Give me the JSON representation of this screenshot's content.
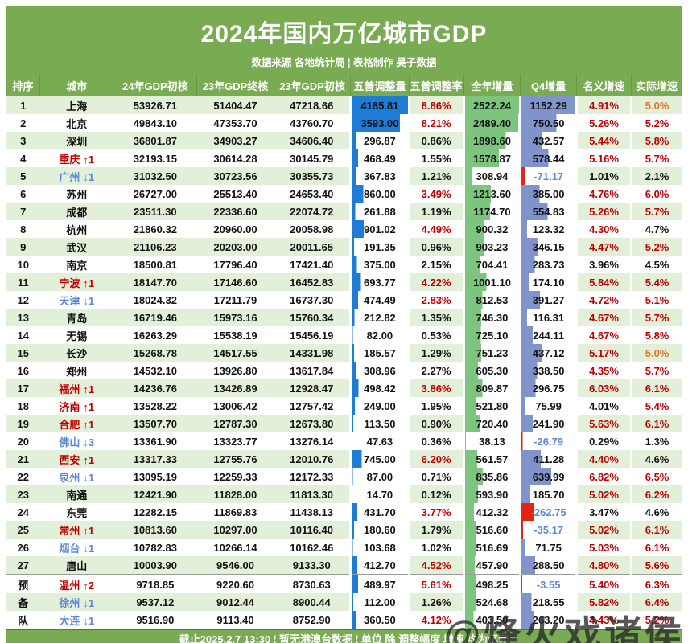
{
  "title": "2024年国内万亿城市GDP",
  "subtitle": "数据来源 各地统计局 ¦ 表格制作 昊子数据",
  "footer": "截止2025.2.7 13:30 ¦ 暂无港澳台数据 ¦ 单位 除 调整幅度 增速 均为亿元",
  "watermark": "@烽火戏诸侯",
  "colors": {
    "header_green": "#79AB52",
    "row_alt": "#E2EFD9",
    "red": "#C00000",
    "orange": "#E2762C",
    "blue": "#5B87D9",
    "adj_bar": "#1F7CD5",
    "annual_bar": "#7DC47E",
    "q4_bar": "#8193CB",
    "neg_bar": "#E02514"
  },
  "columns": [
    "排序",
    "城市",
    "24年GDP初核",
    "23年GDP终核",
    "23年GDP初核",
    "五普调整量",
    "五普调整率",
    "全年增量",
    "Q4增量",
    "名义增速",
    "实际增速"
  ],
  "bar_max": {
    "adj": 4185.81,
    "annual": 2522.24,
    "q4": 1152.29
  },
  "chart_data": {
    "type": "table",
    "title": "2024年国内万亿城市GDP",
    "note": "bars: 五普调整量(blue), 全年增量(green), Q4增量(slate blue / red if negative)"
  },
  "rows": [
    {
      "rank": "1",
      "city": "上海",
      "change": "",
      "dir": "",
      "gdp24": "53926.71",
      "gdp23f": "51404.47",
      "gdp23i": "47218.66",
      "adj": "4185.81",
      "adj_rate": "8.86%",
      "annual": "2522.24",
      "q4": "1152.29",
      "nominal": "4.91%",
      "real": "5.0%"
    },
    {
      "rank": "2",
      "city": "北京",
      "change": "",
      "dir": "",
      "gdp24": "49843.10",
      "gdp23f": "47353.70",
      "gdp23i": "43760.70",
      "adj": "3593.00",
      "adj_rate": "8.21%",
      "annual": "2489.40",
      "q4": "750.50",
      "nominal": "5.26%",
      "real": "5.2%"
    },
    {
      "rank": "3",
      "city": "深圳",
      "change": "",
      "dir": "",
      "gdp24": "36801.87",
      "gdp23f": "34903.27",
      "gdp23i": "34606.40",
      "adj": "296.87",
      "adj_rate": "0.86%",
      "annual": "1898.60",
      "q4": "432.57",
      "nominal": "5.44%",
      "real": "5.8%"
    },
    {
      "rank": "4",
      "city": "重庆",
      "change": "↑1",
      "dir": "up",
      "gdp24": "32193.15",
      "gdp23f": "30614.28",
      "gdp23i": "30145.79",
      "adj": "468.49",
      "adj_rate": "1.55%",
      "annual": "1578.87",
      "q4": "578.44",
      "nominal": "5.16%",
      "real": "5.7%"
    },
    {
      "rank": "5",
      "city": "广州",
      "change": "↓1",
      "dir": "down",
      "gdp24": "31032.50",
      "gdp23f": "30723.56",
      "gdp23i": "30355.73",
      "adj": "367.83",
      "adj_rate": "1.21%",
      "annual": "308.94",
      "q4": "-71.17",
      "nominal": "1.01%",
      "real": "2.1%"
    },
    {
      "rank": "6",
      "city": "苏州",
      "change": "",
      "dir": "",
      "gdp24": "26727.00",
      "gdp23f": "25513.40",
      "gdp23i": "24653.40",
      "adj": "860.00",
      "adj_rate": "3.49%",
      "annual": "1213.60",
      "q4": "385.00",
      "nominal": "4.76%",
      "real": "6.0%"
    },
    {
      "rank": "7",
      "city": "成都",
      "change": "",
      "dir": "",
      "gdp24": "23511.30",
      "gdp23f": "22336.60",
      "gdp23i": "22074.72",
      "adj": "261.88",
      "adj_rate": "1.19%",
      "annual": "1174.70",
      "q4": "554.83",
      "nominal": "5.26%",
      "real": "5.7%"
    },
    {
      "rank": "8",
      "city": "杭州",
      "change": "",
      "dir": "",
      "gdp24": "21860.32",
      "gdp23f": "20960.00",
      "gdp23i": "20058.98",
      "adj": "901.02",
      "adj_rate": "4.49%",
      "annual": "900.32",
      "q4": "123.32",
      "nominal": "4.30%",
      "real": "4.7%"
    },
    {
      "rank": "9",
      "city": "武汉",
      "change": "",
      "dir": "",
      "gdp24": "21106.23",
      "gdp23f": "20203.00",
      "gdp23i": "20011.65",
      "adj": "191.35",
      "adj_rate": "0.96%",
      "annual": "903.23",
      "q4": "346.15",
      "nominal": "4.47%",
      "real": "5.2%"
    },
    {
      "rank": "10",
      "city": "南京",
      "change": "",
      "dir": "",
      "gdp24": "18500.81",
      "gdp23f": "17796.40",
      "gdp23i": "17421.40",
      "adj": "375.00",
      "adj_rate": "2.15%",
      "annual": "704.41",
      "q4": "283.73",
      "nominal": "3.96%",
      "real": "4.5%"
    },
    {
      "rank": "11",
      "city": "宁波",
      "change": "↑1",
      "dir": "up",
      "gdp24": "18147.70",
      "gdp23f": "17146.60",
      "gdp23i": "16452.83",
      "adj": "693.77",
      "adj_rate": "4.22%",
      "annual": "1001.10",
      "q4": "174.10",
      "nominal": "5.84%",
      "real": "5.4%"
    },
    {
      "rank": "12",
      "city": "天津",
      "change": "↓1",
      "dir": "down",
      "gdp24": "18024.32",
      "gdp23f": "17211.79",
      "gdp23i": "16737.30",
      "adj": "474.49",
      "adj_rate": "2.83%",
      "annual": "812.53",
      "q4": "391.27",
      "nominal": "4.72%",
      "real": "5.1%"
    },
    {
      "rank": "13",
      "city": "青岛",
      "change": "",
      "dir": "",
      "gdp24": "16719.46",
      "gdp23f": "15973.16",
      "gdp23i": "15760.34",
      "adj": "212.82",
      "adj_rate": "1.35%",
      "annual": "746.30",
      "q4": "116.31",
      "nominal": "4.67%",
      "real": "5.7%"
    },
    {
      "rank": "14",
      "city": "无锡",
      "change": "",
      "dir": "",
      "gdp24": "16263.29",
      "gdp23f": "15538.19",
      "gdp23i": "15456.19",
      "adj": "82.00",
      "adj_rate": "0.53%",
      "annual": "725.10",
      "q4": "244.11",
      "nominal": "4.67%",
      "real": "5.8%"
    },
    {
      "rank": "15",
      "city": "长沙",
      "change": "",
      "dir": "",
      "gdp24": "15268.78",
      "gdp23f": "14517.55",
      "gdp23i": "14331.98",
      "adj": "185.57",
      "adj_rate": "1.29%",
      "annual": "751.23",
      "q4": "437.12",
      "nominal": "5.17%",
      "real": "5.0%"
    },
    {
      "rank": "16",
      "city": "郑州",
      "change": "",
      "dir": "",
      "gdp24": "14532.10",
      "gdp23f": "13926.80",
      "gdp23i": "13617.84",
      "adj": "308.96",
      "adj_rate": "2.27%",
      "annual": "605.30",
      "q4": "338.50",
      "nominal": "4.35%",
      "real": "5.7%"
    },
    {
      "rank": "17",
      "city": "福州",
      "change": "↑1",
      "dir": "up",
      "gdp24": "14236.76",
      "gdp23f": "13426.89",
      "gdp23i": "12928.47",
      "adj": "498.42",
      "adj_rate": "3.86%",
      "annual": "809.87",
      "q4": "296.75",
      "nominal": "6.03%",
      "real": "6.1%"
    },
    {
      "rank": "18",
      "city": "济南",
      "change": "↑1",
      "dir": "up",
      "gdp24": "13528.22",
      "gdp23f": "13006.42",
      "gdp23i": "12757.42",
      "adj": "249.00",
      "adj_rate": "1.95%",
      "annual": "521.80",
      "q4": "75.99",
      "nominal": "4.01%",
      "real": "5.4%"
    },
    {
      "rank": "19",
      "city": "合肥",
      "change": "↑1",
      "dir": "up",
      "gdp24": "13507.70",
      "gdp23f": "12787.30",
      "gdp23i": "12673.80",
      "adj": "113.50",
      "adj_rate": "0.90%",
      "annual": "720.40",
      "q4": "241.90",
      "nominal": "5.63%",
      "real": "6.1%"
    },
    {
      "rank": "20",
      "city": "佛山",
      "change": "↓3",
      "dir": "down",
      "gdp24": "13361.90",
      "gdp23f": "13323.77",
      "gdp23i": "13276.14",
      "adj": "47.63",
      "adj_rate": "0.36%",
      "annual": "38.13",
      "q4": "-26.79",
      "nominal": "0.29%",
      "real": "1.3%"
    },
    {
      "rank": "21",
      "city": "西安",
      "change": "↑1",
      "dir": "up",
      "gdp24": "13317.33",
      "gdp23f": "12755.76",
      "gdp23i": "12010.76",
      "adj": "745.00",
      "adj_rate": "6.20%",
      "annual": "561.57",
      "q4": "411.28",
      "nominal": "4.40%",
      "real": "4.6%"
    },
    {
      "rank": "22",
      "city": "泉州",
      "change": "↓1",
      "dir": "down",
      "gdp24": "13095.19",
      "gdp23f": "12259.33",
      "gdp23i": "12172.33",
      "adj": "87.00",
      "adj_rate": "0.71%",
      "annual": "835.86",
      "q4": "639.99",
      "nominal": "6.82%",
      "real": "6.5%"
    },
    {
      "rank": "23",
      "city": "南通",
      "change": "",
      "dir": "",
      "gdp24": "12421.90",
      "gdp23f": "11828.00",
      "gdp23i": "11813.30",
      "adj": "14.70",
      "adj_rate": "0.12%",
      "annual": "593.90",
      "q4": "185.70",
      "nominal": "5.02%",
      "real": "6.2%"
    },
    {
      "rank": "24",
      "city": "东莞",
      "change": "",
      "dir": "",
      "gdp24": "12282.15",
      "gdp23f": "11869.83",
      "gdp23i": "11438.13",
      "adj": "431.70",
      "adj_rate": "3.77%",
      "annual": "412.32",
      "q4": "-262.75",
      "nominal": "3.47%",
      "real": "4.6%"
    },
    {
      "rank": "25",
      "city": "常州",
      "change": "↑1",
      "dir": "up",
      "gdp24": "10813.60",
      "gdp23f": "10297.00",
      "gdp23i": "10116.40",
      "adj": "180.60",
      "adj_rate": "1.79%",
      "annual": "516.60",
      "q4": "-35.17",
      "nominal": "5.02%",
      "real": "6.1%"
    },
    {
      "rank": "26",
      "city": "烟台",
      "change": "↓1",
      "dir": "down",
      "gdp24": "10782.83",
      "gdp23f": "10266.14",
      "gdp23i": "10162.46",
      "adj": "103.68",
      "adj_rate": "1.02%",
      "annual": "516.69",
      "q4": "71.75",
      "nominal": "5.03%",
      "real": "6.1%"
    },
    {
      "rank": "27",
      "city": "唐山",
      "change": "",
      "dir": "",
      "gdp24": "10003.90",
      "gdp23f": "9546.00",
      "gdp23i": "9133.30",
      "adj": "412.70",
      "adj_rate": "4.52%",
      "annual": "457.90",
      "q4": "288.50",
      "nominal": "4.80%",
      "real": "5.6%"
    },
    {
      "rank": "预",
      "city": "温州",
      "change": "↑2",
      "dir": "up",
      "section_start": true,
      "gdp24": "9718.85",
      "gdp23f": "9220.60",
      "gdp23i": "8730.63",
      "adj": "489.97",
      "adj_rate": "5.61%",
      "annual": "498.25",
      "q4": "-3.55",
      "nominal": "5.40%",
      "real": "6.3%"
    },
    {
      "rank": "备",
      "city": "徐州",
      "change": "↓1",
      "dir": "down",
      "gdp24": "9537.12",
      "gdp23f": "9012.44",
      "gdp23i": "8900.44",
      "adj": "112.00",
      "adj_rate": "1.26%",
      "annual": "524.68",
      "q4": "218.55",
      "nominal": "5.82%",
      "real": "6.4%"
    },
    {
      "rank": "队",
      "city": "大连",
      "change": "↓1",
      "dir": "down",
      "gdp24": "9516.90",
      "gdp23f": "9113.40",
      "gdp23i": "8752.90",
      "adj": "360.50",
      "adj_rate": "4.12%",
      "annual": "403.50",
      "q4": "263.20",
      "nominal": "4.43%",
      "real": "5.2%"
    }
  ]
}
